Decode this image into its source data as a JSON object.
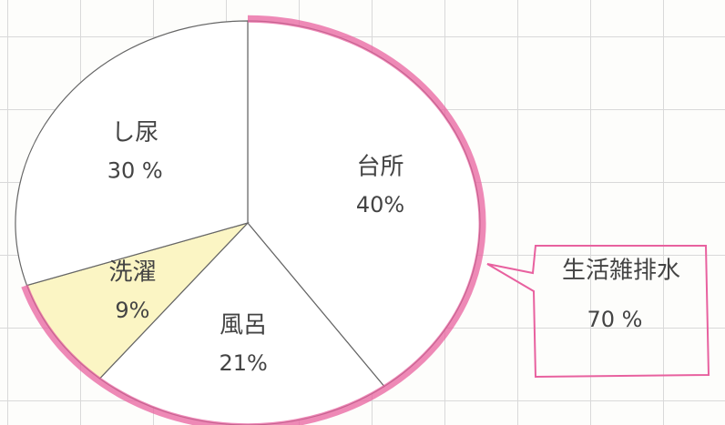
{
  "chart_data": {
    "type": "pie",
    "categories": [
      "台所",
      "風呂",
      "洗濯",
      "し尿"
    ],
    "values": [
      40,
      21,
      9,
      30
    ],
    "value_labels": [
      "40%",
      "21%",
      "9%",
      "30 %"
    ],
    "colors": [
      "#ffffff",
      "#ffffff",
      "#fbf5c4",
      "#ffffff"
    ],
    "annotations": [
      {
        "text": "生活雑排水",
        "value": 70,
        "label": "70 %",
        "color": "#e8619f"
      }
    ]
  }
}
